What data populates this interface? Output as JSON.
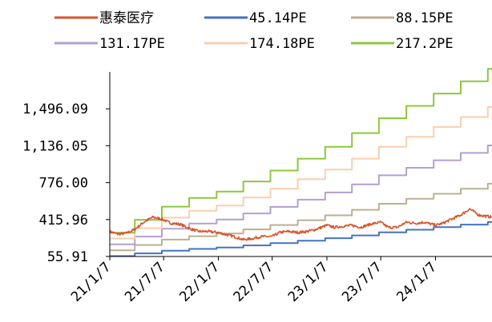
{
  "chart_data": {
    "type": "line",
    "title": "",
    "xlabel": "",
    "ylabel": "",
    "ylim": [
      55.91,
      1856.13
    ],
    "yticks": [
      "55.91",
      "415.96",
      "776.00",
      "1,136.05",
      "1,496.09"
    ],
    "ytick_values": [
      55.91,
      415.96,
      776.0,
      1136.05,
      1496.09
    ],
    "xtick_labels": [
      "21/1/7",
      "21/7/7",
      "22/1/7",
      "22/7/7",
      "23/1/7",
      "23/7/7",
      "24/1/7"
    ],
    "xtick_values": [
      "2021-01-07",
      "2021-07-07",
      "2022-01-07",
      "2022-07-07",
      "2023-01-07",
      "2023-07-07",
      "2024-01-07"
    ],
    "xlim": [
      "2021-01-07",
      "2024-07-15"
    ],
    "legend_position": "top",
    "grid": false,
    "series": [
      {
        "name": "惠泰医疗",
        "color": "#D9542B",
        "style": "noisy",
        "points": [
          [
            "2021-01-07",
            300
          ],
          [
            "2021-02-01",
            275
          ],
          [
            "2021-03-01",
            280
          ],
          [
            "2021-04-01",
            320
          ],
          [
            "2021-05-01",
            390
          ],
          [
            "2021-06-01",
            440
          ],
          [
            "2021-07-01",
            420
          ],
          [
            "2021-08-01",
            380
          ],
          [
            "2021-09-01",
            370
          ],
          [
            "2021-10-01",
            330
          ],
          [
            "2021-11-01",
            300
          ],
          [
            "2021-12-01",
            300
          ],
          [
            "2022-01-07",
            290
          ],
          [
            "2022-02-01",
            270
          ],
          [
            "2022-03-01",
            250
          ],
          [
            "2022-04-01",
            220
          ],
          [
            "2022-05-01",
            230
          ],
          [
            "2022-06-01",
            250
          ],
          [
            "2022-07-07",
            250
          ],
          [
            "2022-08-01",
            290
          ],
          [
            "2022-09-01",
            300
          ],
          [
            "2022-10-01",
            290
          ],
          [
            "2022-11-01",
            300
          ],
          [
            "2022-12-01",
            320
          ],
          [
            "2023-01-07",
            360
          ],
          [
            "2023-02-01",
            340
          ],
          [
            "2023-03-01",
            350
          ],
          [
            "2023-04-01",
            360
          ],
          [
            "2023-05-01",
            340
          ],
          [
            "2023-06-01",
            370
          ],
          [
            "2023-07-07",
            390
          ],
          [
            "2023-08-01",
            340
          ],
          [
            "2023-09-01",
            340
          ],
          [
            "2023-10-01",
            390
          ],
          [
            "2023-11-01",
            380
          ],
          [
            "2023-12-01",
            390
          ],
          [
            "2024-01-07",
            360
          ],
          [
            "2024-02-01",
            380
          ],
          [
            "2024-03-01",
            420
          ],
          [
            "2024-04-01",
            460
          ],
          [
            "2024-05-01",
            520
          ],
          [
            "2024-06-01",
            460
          ],
          [
            "2024-07-15",
            440
          ]
        ]
      },
      {
        "name": "45.14PE",
        "color": "#4472C4",
        "style": "step",
        "points": [
          [
            "2021-01-07",
            60
          ],
          [
            "2021-04-01",
            86
          ],
          [
            "2021-07-01",
            113
          ],
          [
            "2021-10-01",
            130
          ],
          [
            "2022-01-01",
            143
          ],
          [
            "2022-04-01",
            164
          ],
          [
            "2022-07-01",
            186
          ],
          [
            "2022-10-01",
            210
          ],
          [
            "2023-01-01",
            234
          ],
          [
            "2023-04-01",
            262
          ],
          [
            "2023-07-01",
            292
          ],
          [
            "2023-10-01",
            317
          ],
          [
            "2024-01-01",
            342
          ],
          [
            "2024-04-01",
            367
          ],
          [
            "2024-07-01",
            392
          ],
          [
            "2024-07-15",
            392
          ]
        ]
      },
      {
        "name": "88.15PE",
        "color": "#BCB08F",
        "style": "step",
        "points": [
          [
            "2021-01-07",
            117
          ],
          [
            "2021-04-01",
            168
          ],
          [
            "2021-07-01",
            220
          ],
          [
            "2021-10-01",
            254
          ],
          [
            "2022-01-01",
            280
          ],
          [
            "2022-04-01",
            320
          ],
          [
            "2022-07-01",
            363
          ],
          [
            "2022-10-01",
            410
          ],
          [
            "2023-01-01",
            457
          ],
          [
            "2023-04-01",
            511
          ],
          [
            "2023-07-01",
            570
          ],
          [
            "2023-10-01",
            619
          ],
          [
            "2024-01-01",
            668
          ],
          [
            "2024-04-01",
            717
          ],
          [
            "2024-07-01",
            766
          ],
          [
            "2024-07-15",
            766
          ]
        ]
      },
      {
        "name": "131.17PE",
        "color": "#B29FD4",
        "style": "step",
        "points": [
          [
            "2021-01-07",
            174
          ],
          [
            "2021-04-01",
            250
          ],
          [
            "2021-07-01",
            327
          ],
          [
            "2021-10-01",
            378
          ],
          [
            "2022-01-01",
            416
          ],
          [
            "2022-04-01",
            476
          ],
          [
            "2022-07-01",
            540
          ],
          [
            "2022-10-01",
            610
          ],
          [
            "2023-01-01",
            680
          ],
          [
            "2023-04-01",
            760
          ],
          [
            "2023-07-01",
            848
          ],
          [
            "2023-10-01",
            921
          ],
          [
            "2024-01-01",
            994
          ],
          [
            "2024-04-01",
            1066
          ],
          [
            "2024-07-01",
            1139
          ],
          [
            "2024-07-15",
            1139
          ]
        ]
      },
      {
        "name": "174.18PE",
        "color": "#F8CFAE",
        "style": "step",
        "points": [
          [
            "2021-01-07",
            231
          ],
          [
            "2021-04-01",
            332
          ],
          [
            "2021-07-01",
            435
          ],
          [
            "2021-10-01",
            502
          ],
          [
            "2022-01-01",
            552
          ],
          [
            "2022-04-01",
            632
          ],
          [
            "2022-07-01",
            717
          ],
          [
            "2022-10-01",
            810
          ],
          [
            "2023-01-01",
            903
          ],
          [
            "2023-04-01",
            1010
          ],
          [
            "2023-07-01",
            1126
          ],
          [
            "2023-10-01",
            1223
          ],
          [
            "2024-01-01",
            1319
          ],
          [
            "2024-04-01",
            1416
          ],
          [
            "2024-07-01",
            1513
          ],
          [
            "2024-07-15",
            1513
          ]
        ]
      },
      {
        "name": "217.2PE",
        "color": "#8CC83D",
        "style": "step",
        "points": [
          [
            "2021-01-07",
            288
          ],
          [
            "2021-04-01",
            414
          ],
          [
            "2021-07-01",
            542
          ],
          [
            "2021-10-01",
            626
          ],
          [
            "2022-01-01",
            689
          ],
          [
            "2022-04-01",
            788
          ],
          [
            "2022-07-01",
            894
          ],
          [
            "2022-10-01",
            1010
          ],
          [
            "2023-01-01",
            1126
          ],
          [
            "2023-04-01",
            1259
          ],
          [
            "2023-07-01",
            1404
          ],
          [
            "2023-10-01",
            1525
          ],
          [
            "2024-01-01",
            1645
          ],
          [
            "2024-04-01",
            1765
          ],
          [
            "2024-07-01",
            1886
          ],
          [
            "2024-07-15",
            1886
          ]
        ]
      }
    ]
  }
}
